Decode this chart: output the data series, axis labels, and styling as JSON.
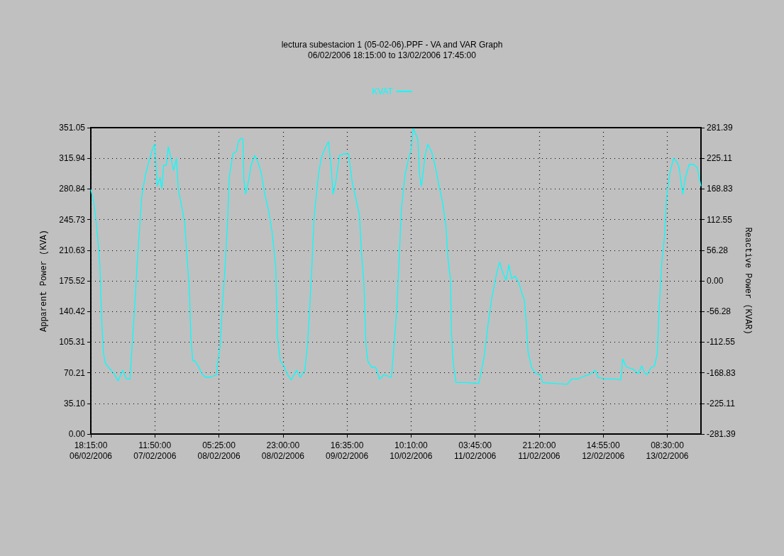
{
  "chart_data": {
    "type": "line",
    "title": "lectura subestacion 1 (05-02-06).PPF - VA and VAR Graph",
    "subtitle": "06/02/2006 18:15:00 to 13/02/2006 17:45:00",
    "ylabel": "Apparent Power (KVA)",
    "y2label": "Reactive Power (KVAR)",
    "x": [
      "2006-02-06T18:15",
      "2006-02-06T19:00",
      "2006-02-06T19:30",
      "2006-02-06T20:15",
      "2006-02-06T20:45",
      "2006-02-06T21:15",
      "2006-02-06T21:45",
      "2006-02-06T22:15",
      "2006-02-06T23:00",
      "2006-02-07T00:30",
      "2006-02-07T01:45",
      "2006-02-07T03:00",
      "2006-02-07T04:00",
      "2006-02-07T05:00",
      "2006-02-07T05:45",
      "2006-02-07T06:15",
      "2006-02-07T07:00",
      "2006-02-07T08:15",
      "2006-02-07T09:15",
      "2006-02-07T10:15",
      "2006-02-07T11:15",
      "2006-02-07T11:45",
      "2006-02-07T12:00",
      "2006-02-07T12:30",
      "2006-02-07T13:15",
      "2006-02-07T13:45",
      "2006-02-07T14:15",
      "2006-02-07T15:00",
      "2006-02-07T15:30",
      "2006-02-07T16:15",
      "2006-02-07T17:00",
      "2006-02-07T17:45",
      "2006-02-07T18:15",
      "2006-02-07T19:00",
      "2006-02-07T20:00",
      "2006-02-07T20:45",
      "2006-02-07T21:15",
      "2006-02-07T21:45",
      "2006-02-07T22:15",
      "2006-02-07T22:45",
      "2006-02-07T23:45",
      "2006-02-08T00:45",
      "2006-02-08T01:45",
      "2006-02-08T03:00",
      "2006-02-08T04:45",
      "2006-02-08T05:00",
      "2006-02-08T05:45",
      "2006-02-08T06:15",
      "2006-02-08T07:00",
      "2006-02-08T07:45",
      "2006-02-08T08:15",
      "2006-02-08T09:15",
      "2006-02-08T10:15",
      "2006-02-08T10:45",
      "2006-02-08T11:30",
      "2006-02-08T12:00",
      "2006-02-08T12:15",
      "2006-02-08T12:45",
      "2006-02-08T13:30",
      "2006-02-08T14:15",
      "2006-02-08T15:15",
      "2006-02-08T16:00",
      "2006-02-08T17:00",
      "2006-02-08T18:00",
      "2006-02-08T19:00",
      "2006-02-08T20:00",
      "2006-02-08T21:00",
      "2006-02-08T21:30",
      "2006-02-08T22:15",
      "2006-02-08T23:15",
      "2006-02-09T00:15",
      "2006-02-09T01:15",
      "2006-02-09T02:45",
      "2006-02-09T03:45",
      "2006-02-09T05:00",
      "2006-02-09T05:45",
      "2006-02-09T06:15",
      "2006-02-09T07:00",
      "2006-02-09T07:30",
      "2006-02-09T08:15",
      "2006-02-09T08:45",
      "2006-02-09T09:30",
      "2006-02-09T10:30",
      "2006-02-09T11:30",
      "2006-02-09T12:15",
      "2006-02-09T12:45",
      "2006-02-09T13:30",
      "2006-02-09T14:30",
      "2006-02-09T15:45",
      "2006-02-09T17:00",
      "2006-02-09T18:00",
      "2006-02-09T19:00",
      "2006-02-09T20:00",
      "2006-02-09T20:30",
      "2006-02-09T21:15",
      "2006-02-09T21:45",
      "2006-02-09T22:15",
      "2006-02-09T23:15",
      "2006-02-10T00:30",
      "2006-02-10T01:30",
      "2006-02-10T02:45",
      "2006-02-10T04:45",
      "2006-02-10T05:15",
      "2006-02-10T06:15",
      "2006-02-10T07:00",
      "2006-02-10T07:30",
      "2006-02-10T08:30",
      "2006-02-10T09:30",
      "2006-02-10T10:15",
      "2006-02-10T10:45",
      "2006-02-10T11:30",
      "2006-02-10T12:00",
      "2006-02-10T12:30",
      "2006-02-10T13:00",
      "2006-02-10T13:30",
      "2006-02-10T14:00",
      "2006-02-10T14:45",
      "2006-02-10T15:45",
      "2006-02-10T16:45",
      "2006-02-10T17:45",
      "2006-02-10T18:45",
      "2006-02-10T19:45",
      "2006-02-10T20:15",
      "2006-02-10T21:00",
      "2006-02-10T21:15",
      "2006-02-10T21:45",
      "2006-02-10T22:30",
      "2006-02-11T01:15",
      "2006-02-11T04:45",
      "2006-02-11T05:15",
      "2006-02-11T06:15",
      "2006-02-11T07:15",
      "2006-02-11T08:15",
      "2006-02-11T09:00",
      "2006-02-11T09:45",
      "2006-02-11T10:30",
      "2006-02-11T11:15",
      "2006-02-11T12:15",
      "2006-02-11T13:00",
      "2006-02-11T13:45",
      "2006-02-11T14:45",
      "2006-02-11T15:45",
      "2006-02-11T16:45",
      "2006-02-11T17:15",
      "2006-02-11T17:45",
      "2006-02-11T18:15",
      "2006-02-11T19:15",
      "2006-02-11T20:30",
      "2006-02-11T21:45",
      "2006-02-11T22:15",
      "2006-02-12T01:15",
      "2006-02-12T05:00",
      "2006-02-12T06:15",
      "2006-02-12T08:00",
      "2006-02-12T09:30",
      "2006-02-12T11:30",
      "2006-02-12T12:45",
      "2006-02-12T13:30",
      "2006-02-12T15:30",
      "2006-02-12T18:00",
      "2006-02-12T19:45",
      "2006-02-12T20:15",
      "2006-02-12T21:15",
      "2006-02-12T23:15",
      "2006-02-13T00:30",
      "2006-02-13T01:30",
      "2006-02-13T02:15",
      "2006-02-13T03:00",
      "2006-02-13T04:00",
      "2006-02-13T05:00",
      "2006-02-13T05:45",
      "2006-02-13T06:15",
      "2006-02-13T07:00",
      "2006-02-13T07:45",
      "2006-02-13T08:15",
      "2006-02-13T09:15",
      "2006-02-13T10:15",
      "2006-02-13T11:15",
      "2006-02-13T11:45",
      "2006-02-13T12:45",
      "2006-02-13T13:30",
      "2006-02-13T14:30",
      "2006-02-13T15:45",
      "2006-02-13T16:45",
      "2006-02-13T17:45"
    ],
    "series": [
      {
        "name": "KVAT",
        "color": "#00ffff",
        "values": [
          280,
          267,
          251,
          219,
          192,
          130,
          92,
          81,
          77,
          70,
          61,
          73,
          63,
          63,
          111,
          143,
          197,
          273,
          297,
          313,
          327,
          332,
          319,
          284,
          294,
          281,
          308,
          308,
          329,
          316,
          302,
          316,
          281,
          265,
          243,
          197,
          170,
          108,
          84,
          84,
          78,
          69,
          65,
          65,
          68,
          81,
          100,
          140,
          184,
          240,
          294,
          321,
          324,
          335,
          339,
          338,
          292,
          275,
          289,
          308,
          319,
          313,
          300,
          275,
          257,
          232,
          192,
          111,
          84,
          78,
          68,
          62,
          73,
          65,
          73,
          103,
          138,
          197,
          246,
          278,
          297,
          316,
          327,
          335,
          305,
          275,
          289,
          319,
          321,
          321,
          289,
          270,
          251,
          211,
          170,
          103,
          84,
          77,
          76,
          63,
          68,
          65,
          89,
          143,
          211,
          257,
          297,
          316,
          327,
          350,
          343,
          338,
          297,
          284,
          300,
          319,
          332,
          324,
          308,
          286,
          267,
          238,
          203,
          176,
          116,
          81,
          59,
          59,
          58,
          68,
          89,
          124,
          154,
          170,
          186,
          197,
          186,
          176,
          194,
          178,
          181,
          173,
          159,
          154,
          130,
          95,
          76,
          69,
          68,
          59,
          58,
          57,
          63,
          63,
          66,
          69,
          73,
          65,
          63,
          63,
          62,
          86,
          77,
          74,
          69,
          78,
          70,
          68,
          76,
          78,
          92,
          143,
          197,
          227,
          270,
          300,
          316,
          311,
          305,
          275,
          294,
          309,
          309,
          305,
          284
        ]
      }
    ],
    "xlim": [
      "2006-02-06T18:15",
      "2006-02-13T17:45"
    ],
    "xticks": [
      {
        "value": "2006-02-06T18:15",
        "label": "18:15:00\n06/02/2006"
      },
      {
        "value": "2006-02-07T11:50",
        "label": "11:50:00\n07/02/2006"
      },
      {
        "value": "2006-02-08T05:25",
        "label": "05:25:00\n08/02/2006"
      },
      {
        "value": "2006-02-08T23:00",
        "label": "23:00:00\n08/02/2006"
      },
      {
        "value": "2006-02-09T16:35",
        "label": "16:35:00\n09/02/2006"
      },
      {
        "value": "2006-02-10T10:10",
        "label": "10:10:00\n10/02/2006"
      },
      {
        "value": "2006-02-11T03:45",
        "label": "03:45:00\n11/02/2006"
      },
      {
        "value": "2006-02-11T21:20",
        "label": "21:20:00\n11/02/2006"
      },
      {
        "value": "2006-02-12T14:55",
        "label": "14:55:00\n12/02/2006"
      },
      {
        "value": "2006-02-13T08:30",
        "label": "08:30:00\n13/02/2006"
      }
    ],
    "ylim": [
      0,
      351.05
    ],
    "yticks": [
      {
        "value": 0,
        "label": "0.00"
      },
      {
        "value": 35.1,
        "label": "35.10"
      },
      70.21,
      105.31,
      140.42,
      175.52,
      210.63,
      245.73,
      280.84,
      315.94,
      351.05
    ],
    "y2lim": [
      -281.39,
      281.39
    ],
    "y2ticks": [
      -281.39,
      -225.11,
      -168.83,
      -112.55,
      -56.28,
      {
        "value": 0,
        "label": "0.00"
      },
      56.28,
      112.55,
      168.83,
      225.11,
      281.39
    ],
    "grid": true,
    "legend": "top"
  }
}
